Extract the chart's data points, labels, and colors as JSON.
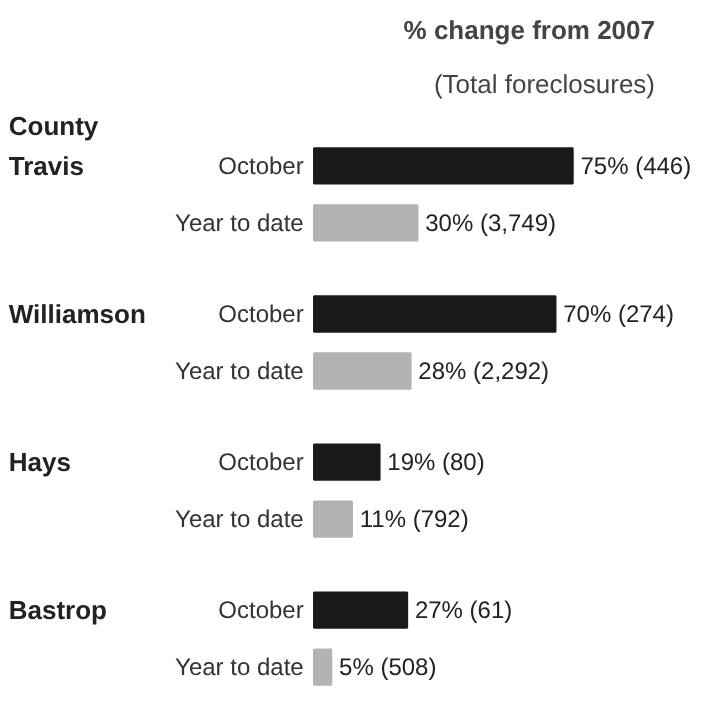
{
  "chart_data": {
    "type": "bar",
    "orientation": "horizontal",
    "tick_labels": false,
    "title": "% change from 2007",
    "subtitle": "(Total foreclosures)",
    "ylabel": "County",
    "categories": [
      "Travis",
      "Williamson",
      "Hays",
      "Bastrop"
    ],
    "series": [
      {
        "name": "October",
        "color": "#1a1a1a",
        "values": [
          75,
          70,
          19,
          27
        ],
        "value_labels": [
          "75% (446)",
          "70% (274)",
          "19% (80)",
          "27% (61)"
        ]
      },
      {
        "name": "Year to date",
        "color": "#b3b3b3",
        "values": [
          30,
          28,
          11,
          5
        ],
        "value_labels": [
          "30% (3,749)",
          "28% (2,292)",
          "11% (792)",
          "5% (508)"
        ]
      }
    ]
  }
}
